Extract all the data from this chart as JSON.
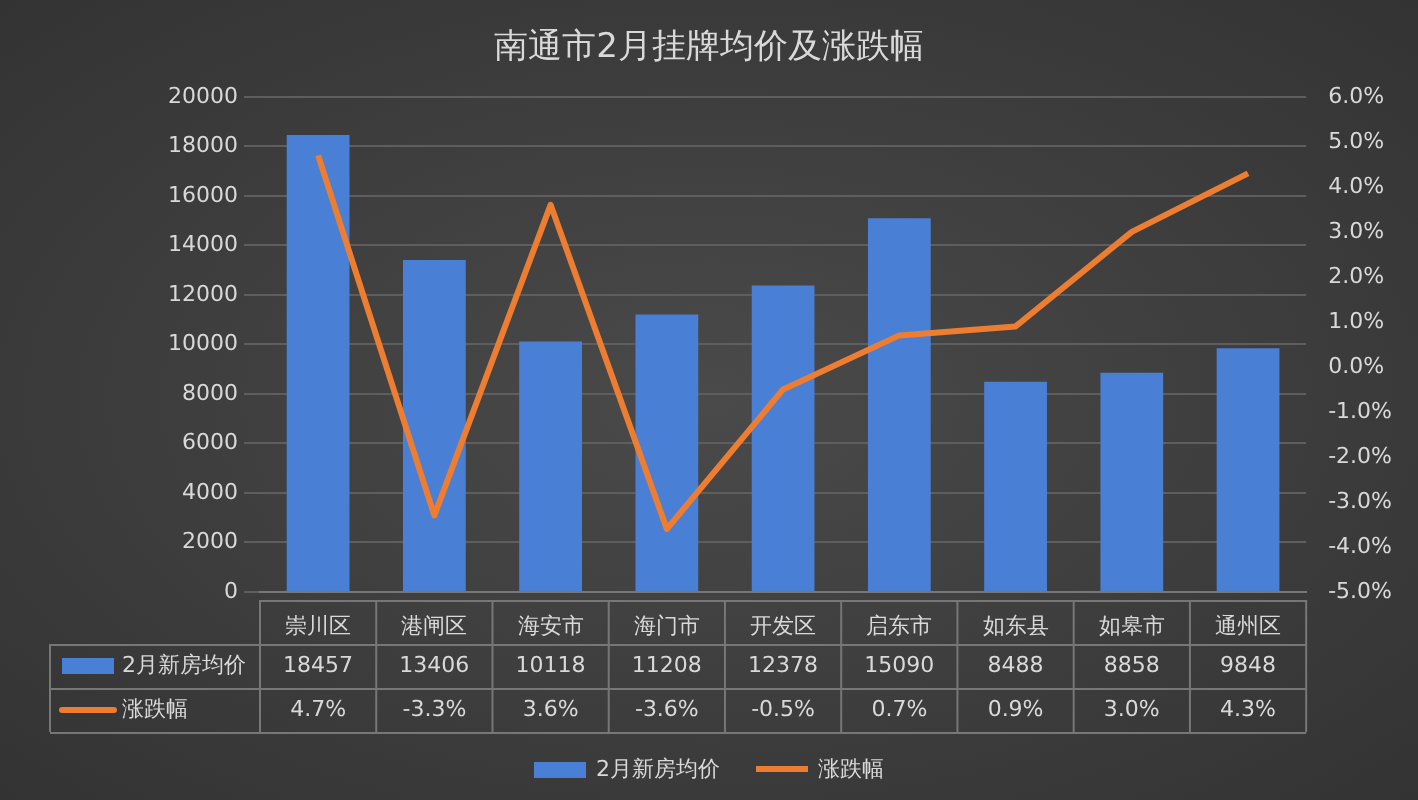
{
  "chart_data": {
    "type": "bar",
    "title": "南通市2月挂牌均价及涨跌幅",
    "categories": [
      "崇川区",
      "港闸区",
      "海安市",
      "海门市",
      "开发区",
      "启东市",
      "如东县",
      "如皋市",
      "通州区"
    ],
    "series": [
      {
        "name": "2月新房均价",
        "color": "#4a7fd6",
        "values": [
          18457,
          13406,
          10118,
          11208,
          12378,
          15090,
          8488,
          8858,
          9848
        ],
        "value_labels": [
          "18457",
          "13406",
          "10118",
          "11208",
          "12378",
          "15090",
          "8488",
          "8858",
          "9848"
        ]
      },
      {
        "name": "涨跌幅",
        "type": "line",
        "axis": "y2",
        "color": "#ed7d31",
        "values": [
          4.7,
          -3.3,
          3.6,
          -3.6,
          -0.5,
          0.7,
          0.9,
          3.0,
          4.3
        ],
        "value_labels": [
          "4.7%",
          "-3.3%",
          "3.6%",
          "-3.6%",
          "-0.5%",
          "0.7%",
          "0.9%",
          "3.0%",
          "4.3%"
        ]
      }
    ],
    "ylim": [
      0,
      20000
    ],
    "yticks": [
      0,
      2000,
      4000,
      6000,
      8000,
      10000,
      12000,
      14000,
      16000,
      18000,
      20000
    ],
    "y2lim": [
      -5,
      6
    ],
    "y2ticks": [
      {
        "value": -5,
        "label": "-5.0%"
      },
      {
        "value": -4,
        "label": "-4.0%"
      },
      {
        "value": -3,
        "label": "-3.0%"
      },
      {
        "value": -2,
        "label": "-2.0%"
      },
      {
        "value": -1,
        "label": "-1.0%"
      },
      {
        "value": 0,
        "label": "0.0%"
      },
      {
        "value": 1,
        "label": "1.0%"
      },
      {
        "value": 2,
        "label": "2.0%"
      },
      {
        "value": 3,
        "label": "3.0%"
      },
      {
        "value": 4,
        "label": "4.0%"
      },
      {
        "value": 5,
        "label": "5.0%"
      },
      {
        "value": 6,
        "label": "6.0%"
      }
    ],
    "grid": "y",
    "legend": "bottom",
    "marker": "none",
    "line_style": "solid"
  }
}
